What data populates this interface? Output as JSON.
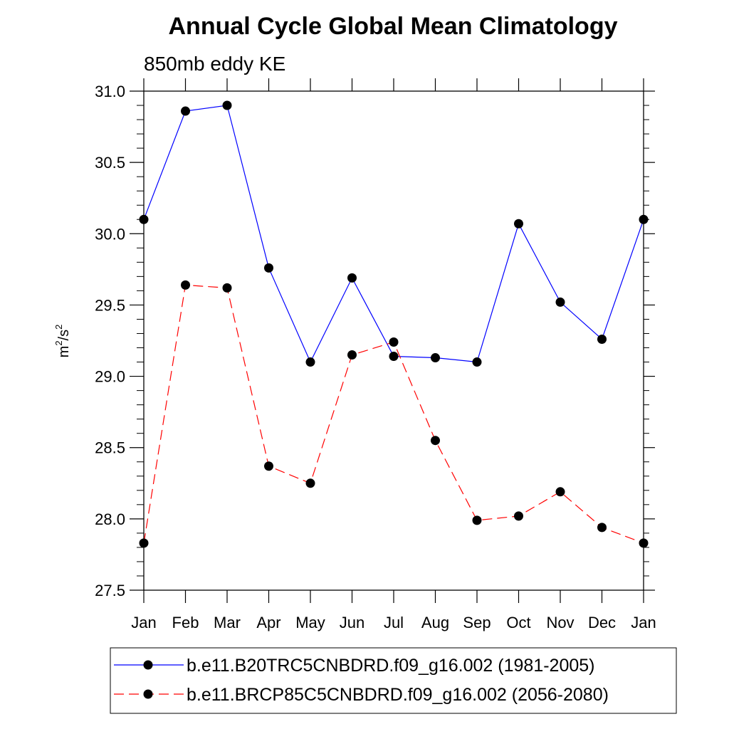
{
  "chart_data": {
    "type": "line",
    "title": "Annual Cycle Global Mean Climatology",
    "subtitle": "850mb eddy KE",
    "ylabel": {
      "base": "m",
      "sup1": "2",
      "mid": "/s",
      "sup2": "2"
    },
    "xlabel": "",
    "categories": [
      "Jan",
      "Feb",
      "Mar",
      "Apr",
      "May",
      "Jun",
      "Jul",
      "Aug",
      "Sep",
      "Oct",
      "Nov",
      "Dec",
      "Jan"
    ],
    "ylim": [
      27.5,
      31.0
    ],
    "yticks": [
      27.5,
      28.0,
      28.5,
      29.0,
      29.5,
      30.0,
      30.5,
      31.0
    ],
    "ytick_labels": [
      "27.5",
      "28.0",
      "28.5",
      "29.0",
      "29.5",
      "30.0",
      "30.5",
      "31.0"
    ],
    "y_minor_step": 0.1,
    "grid": false,
    "legend_position": "bottom",
    "series": [
      {
        "name": "b.e11.B20TRC5CNBDRD.f09_g16.002 (1981-2005)",
        "color": "#0000ff",
        "dash": "solid",
        "marker": "circle",
        "values": [
          30.1,
          30.86,
          30.9,
          29.76,
          29.1,
          29.69,
          29.14,
          29.13,
          29.1,
          30.07,
          29.52,
          29.26,
          30.1
        ]
      },
      {
        "name": "b.e11.BRCP85C5CNBDRD.f09_g16.002 (2056-2080)",
        "color": "#ff0000",
        "dash": "dashed",
        "marker": "circle",
        "values": [
          27.83,
          29.64,
          29.62,
          28.37,
          28.25,
          29.15,
          29.24,
          28.55,
          27.99,
          28.02,
          28.19,
          27.94,
          27.83
        ]
      }
    ]
  }
}
